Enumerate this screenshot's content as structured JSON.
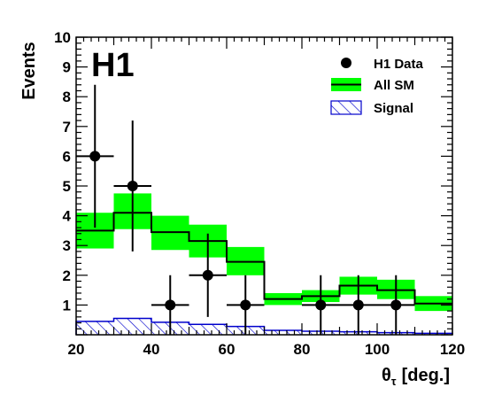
{
  "chart_data": {
    "type": "histogram",
    "logo": "H1",
    "xlabel": "θ",
    "xlabel_sub": "τ",
    "xlabel_unit": "[deg.]",
    "ylabel": "Events",
    "xlim": [
      20,
      120
    ],
    "ylim": [
      0,
      10
    ],
    "x_ticks": [
      "20",
      "40",
      "60",
      "80",
      "100",
      "120"
    ],
    "y_ticks": [
      "1",
      "2",
      "3",
      "4",
      "5",
      "6",
      "7",
      "8",
      "9",
      "10"
    ],
    "bin_edges": [
      20,
      30,
      40,
      50,
      60,
      70,
      80,
      90,
      100,
      110,
      120
    ],
    "legend": {
      "placement": "top-right",
      "entries": [
        {
          "label": "H1 Data"
        },
        {
          "label": "All SM"
        },
        {
          "label": "Signal"
        }
      ]
    },
    "series": [
      {
        "name": "H1 Data",
        "style": "points",
        "x": [
          25,
          35,
          45,
          55,
          65,
          85,
          95,
          105
        ],
        "y": [
          6,
          5,
          1,
          2,
          1,
          1,
          1,
          1
        ],
        "yerr_low": [
          2.4,
          2.2,
          1.0,
          1.4,
          1.0,
          1.0,
          1.0,
          1.0
        ],
        "yerr_high": [
          2.4,
          2.2,
          1.0,
          1.4,
          1.0,
          1.0,
          1.0,
          1.0
        ]
      },
      {
        "name": "All SM",
        "style": "step-with-band",
        "values": [
          3.5,
          4.1,
          3.45,
          3.15,
          2.45,
          1.2,
          1.3,
          1.65,
          1.5,
          1.05
        ],
        "band_low": [
          2.9,
          3.55,
          2.85,
          2.6,
          2.0,
          1.0,
          1.1,
          1.35,
          1.2,
          0.8
        ],
        "band_high": [
          4.1,
          4.75,
          4.0,
          3.7,
          2.95,
          1.4,
          1.5,
          1.95,
          1.85,
          1.3
        ]
      },
      {
        "name": "Signal",
        "style": "hatched-step",
        "values": [
          0.45,
          0.55,
          0.42,
          0.35,
          0.28,
          0.15,
          0.12,
          0.1,
          0.07,
          0.05
        ]
      }
    ],
    "colors": {
      "data": "#000000",
      "sm_band": "#00ff00",
      "sm_line": "#000000",
      "signal": "#0000cc"
    }
  }
}
